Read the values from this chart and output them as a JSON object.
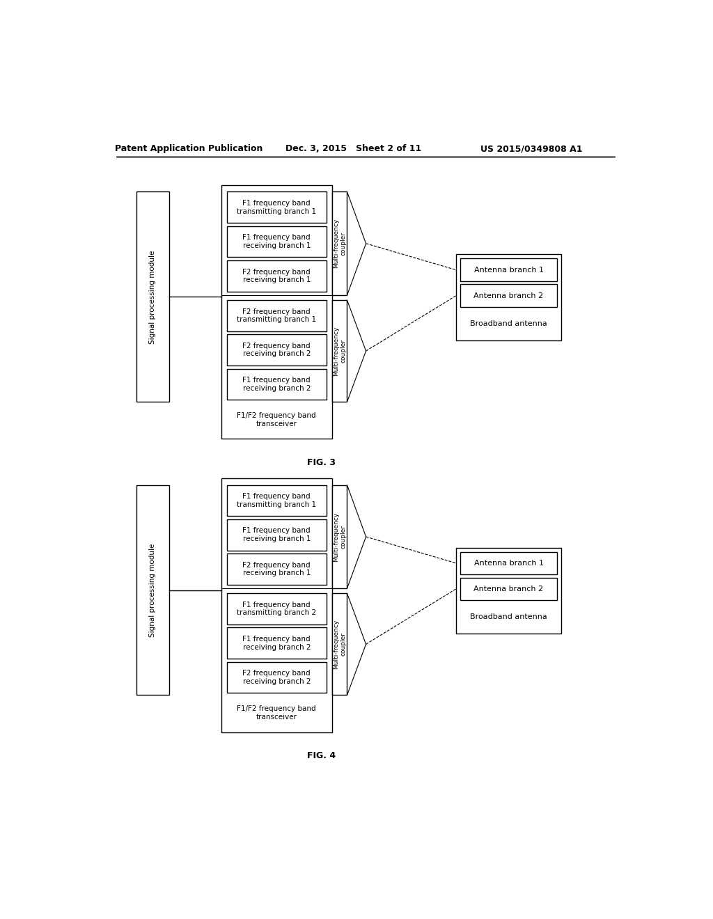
{
  "bg_color": "#ffffff",
  "header_left": "Patent Application Publication",
  "header_mid": "Dec. 3, 2015   Sheet 2 of 11",
  "header_right": "US 2015/0349808 A1",
  "fig3_label": "FIG. 3",
  "fig4_label": "FIG. 4",
  "fig3": {
    "signal_module_label": "Signal processing module",
    "top_coupler_label": "Multi-frequency\ncoupler",
    "bot_coupler_label": "Multi-frequency\ncoupler",
    "top_boxes": [
      "F1 frequency band\ntransmitting branch 1",
      "F1 frequency band\nreceiving branch 1",
      "F2 frequency band\nreceiving branch 1"
    ],
    "bot_boxes": [
      "F2 frequency band\ntransmitting branch 1",
      "F2 frequency band\nreceiving branch 2",
      "F1 frequency band\nreceiving branch 2"
    ],
    "bottom_box": "F1/F2 frequency band\ntransceiver",
    "antenna_boxes": [
      "Antenna branch 1",
      "Antenna branch 2",
      "Broadband antenna"
    ]
  },
  "fig4": {
    "signal_module_label": "Signal processing module",
    "top_coupler_label": "Multi-frequency\ncoupler",
    "bot_coupler_label": "Multi-frequency\ncoupler",
    "top_boxes": [
      "F1 frequency band\ntransmitting branch 1",
      "F1 frequency band\nreceiving branch 1",
      "F2 frequency band\nreceiving branch 1"
    ],
    "bot_boxes": [
      "F1 frequency band\ntransmitting branch 2",
      "F1 frequency band\nreceiving branch 2",
      "F2 frequency band\nreceiving branch 2"
    ],
    "bottom_box": "F1/F2 frequency band\ntransceiver",
    "antenna_boxes": [
      "Antenna branch 1",
      "Antenna branch 2",
      "Broadband antenna"
    ]
  }
}
